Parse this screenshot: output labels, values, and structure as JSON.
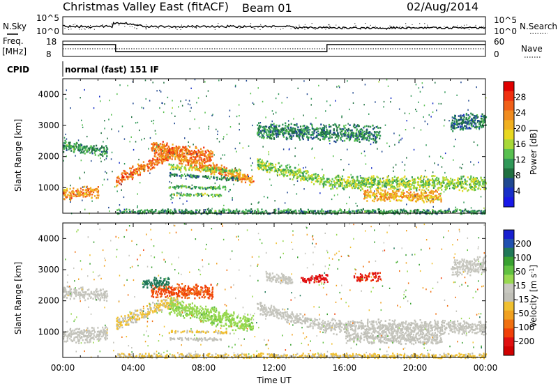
{
  "header": {
    "title": "Christmas Valley East (fitACF)",
    "beam": "Beam 01",
    "date": "02/Aug/2014"
  },
  "strip_labels": {
    "nsky": "N.Sky",
    "nsearch": "N.Search",
    "freq": "Freq.",
    "freq_unit": "[MHz]",
    "nave": "Nave",
    "cpid": "CPID",
    "cpid_value": "normal (fast) 151 IF",
    "noise_ticks": [
      "10^5",
      "10^0"
    ],
    "freq_ticks": [
      "18",
      "8"
    ],
    "nave_ticks": [
      "60",
      "0"
    ],
    "nsearch_ticks": [
      "10^5",
      "10^0"
    ]
  },
  "colorbars": {
    "power": {
      "label": "Power [dB]",
      "ticks": [
        "28",
        "24",
        "20",
        "16",
        "12",
        "8",
        "4"
      ],
      "colors": [
        "#e00000",
        "#f03010",
        "#f06018",
        "#f08c20",
        "#f0b020",
        "#e8d820",
        "#a8d838",
        "#58c050",
        "#309858",
        "#207040",
        "#204890",
        "#1830c8",
        "#1818e8"
      ]
    },
    "velocity": {
      "label": "Velocity [m s",
      "label_sup": "-1",
      "label_end": "]",
      "ticks": [
        "200",
        "100",
        "50",
        "15",
        "-15",
        "-50",
        "-100",
        "-200"
      ],
      "colors": [
        "#1820d0",
        "#2050b0",
        "#207858",
        "#38a030",
        "#60c040",
        "#98d850",
        "#c8c8c0",
        "#c0c0b8",
        "#f0c030",
        "#f0a020",
        "#f07010",
        "#f04008",
        "#e01010",
        "#d00000"
      ]
    }
  },
  "chart_data": [
    {
      "type": "heatmap",
      "name": "Power",
      "ylabel": "Slant Range [km]",
      "yticks": [
        1000,
        2000,
        3000,
        4000
      ],
      "ylim": [
        180,
        4500
      ],
      "xlim": [
        0,
        24
      ],
      "cbar_range": [
        0,
        30
      ],
      "features": [
        {
          "t0": 0.0,
          "t1": 2.0,
          "r_start": 800,
          "r_end": 900,
          "w": 220,
          "p": 22
        },
        {
          "t0": 0.0,
          "t1": 2.5,
          "r_start": 2350,
          "r_end": 2200,
          "w": 200,
          "p": 10
        },
        {
          "t0": 3.0,
          "t1": 6.5,
          "r_start": 1250,
          "r_end": 2200,
          "w": 230,
          "p": 24
        },
        {
          "t0": 5.0,
          "t1": 8.5,
          "r_start": 2300,
          "r_end": 2000,
          "w": 300,
          "p": 23
        },
        {
          "t0": 6.5,
          "t1": 10.8,
          "r_start": 1950,
          "r_end": 1250,
          "w": 220,
          "p": 22
        },
        {
          "t0": 6.0,
          "t1": 10.0,
          "r_start": 1700,
          "r_end": 1550,
          "w": 90,
          "p": 14
        },
        {
          "t0": 6.0,
          "t1": 10.0,
          "r_start": 1450,
          "r_end": 1300,
          "w": 70,
          "p": 9
        },
        {
          "t0": 6.0,
          "t1": 9.5,
          "r_start": 1050,
          "r_end": 1000,
          "w": 60,
          "p": 12
        },
        {
          "t0": 6.0,
          "t1": 9.0,
          "r_start": 820,
          "r_end": 780,
          "w": 60,
          "p": 13
        },
        {
          "t0": 11.0,
          "t1": 15.0,
          "r_start": 1800,
          "r_end": 1200,
          "w": 220,
          "p": 14
        },
        {
          "t0": 15.0,
          "t1": 24.0,
          "r_start": 1200,
          "r_end": 1150,
          "w": 260,
          "p": 14
        },
        {
          "t0": 17.0,
          "t1": 21.5,
          "r_start": 800,
          "r_end": 750,
          "w": 220,
          "p": 20
        },
        {
          "t0": 3.0,
          "t1": 24.0,
          "r_start": 250,
          "r_end": 250,
          "w": 100,
          "p": 10
        },
        {
          "t0": 11.0,
          "t1": 18.0,
          "r_start": 2850,
          "r_end": 2750,
          "w": 300,
          "p": 9
        },
        {
          "t0": 22.0,
          "t1": 24.0,
          "r_start": 3100,
          "r_end": 3200,
          "w": 300,
          "p": 8
        }
      ]
    },
    {
      "type": "heatmap",
      "name": "Velocity",
      "ylabel": "Slant Range [km]",
      "yticks": [
        1000,
        2000,
        3000,
        4000
      ],
      "ylim": [
        180,
        4500
      ],
      "xlim": [
        0,
        24
      ],
      "xticks": [
        "00:00",
        "04:00",
        "08:00",
        "12:00",
        "16:00",
        "20:00",
        "00:00"
      ],
      "xlabel": "Time UT",
      "cbar_range": [
        -250,
        250
      ],
      "features": [
        {
          "t0": 0.0,
          "t1": 2.5,
          "r_start": 900,
          "r_end": 950,
          "w": 280,
          "v": 0
        },
        {
          "t0": 0.0,
          "t1": 2.5,
          "r_start": 2300,
          "r_end": 2200,
          "w": 220,
          "v": 0
        },
        {
          "t0": 3.0,
          "t1": 6.5,
          "r_start": 1250,
          "r_end": 2100,
          "w": 240,
          "v": -40
        },
        {
          "t0": 5.0,
          "t1": 8.5,
          "r_start": 2350,
          "r_end": 2300,
          "w": 260,
          "v": -150
        },
        {
          "t0": 4.5,
          "t1": 6.0,
          "r_start": 2600,
          "r_end": 2600,
          "w": 200,
          "v": 160
        },
        {
          "t0": 6.0,
          "t1": 10.8,
          "r_start": 1850,
          "r_end": 1250,
          "w": 320,
          "v": 60
        },
        {
          "t0": 6.0,
          "t1": 9.5,
          "r_start": 1050,
          "r_end": 1000,
          "w": 60,
          "v": -40
        },
        {
          "t0": 6.0,
          "t1": 9.0,
          "r_start": 820,
          "r_end": 780,
          "w": 60,
          "v": -20
        },
        {
          "t0": 11.0,
          "t1": 15.0,
          "r_start": 1800,
          "r_end": 1200,
          "w": 220,
          "v": 5
        },
        {
          "t0": 15.0,
          "t1": 24.0,
          "r_start": 1200,
          "r_end": 1150,
          "w": 260,
          "v": 0
        },
        {
          "t0": 16.0,
          "t1": 21.5,
          "r_start": 850,
          "r_end": 800,
          "w": 220,
          "v": 0
        },
        {
          "t0": 3.0,
          "t1": 24.0,
          "r_start": 250,
          "r_end": 250,
          "w": 100,
          "v": -40
        },
        {
          "t0": 13.5,
          "t1": 15.0,
          "r_start": 2700,
          "r_end": 2750,
          "w": 150,
          "v": -200
        },
        {
          "t0": 16.5,
          "t1": 18.0,
          "r_start": 2750,
          "r_end": 2800,
          "w": 150,
          "v": -180
        },
        {
          "t0": 11.5,
          "t1": 13.0,
          "r_start": 2800,
          "r_end": 2700,
          "w": 200,
          "v": 8
        },
        {
          "t0": 22.0,
          "t1": 24.0,
          "r_start": 3050,
          "r_end": 3200,
          "w": 300,
          "v": 10
        }
      ]
    }
  ]
}
